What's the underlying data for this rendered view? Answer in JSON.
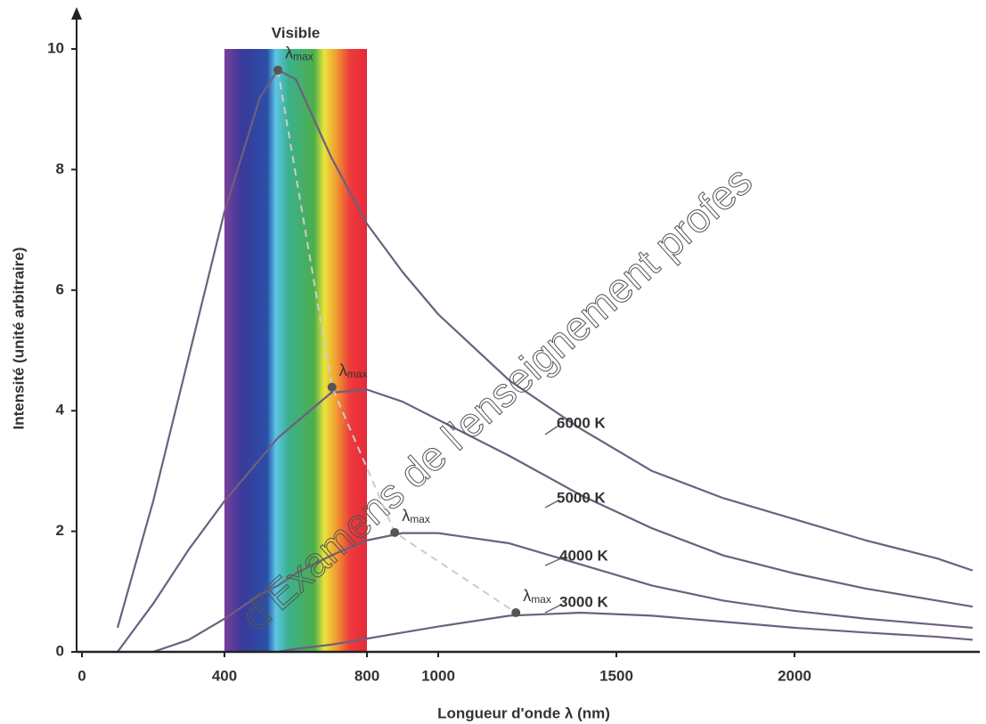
{
  "chart_data": {
    "type": "line",
    "x_label": "Longueur d'onde λ (nm)",
    "y_label": "Intensité (unité arbitraire)",
    "xlim": [
      0,
      2500
    ],
    "ylim": [
      0,
      10
    ],
    "xticks": [
      0,
      400,
      800,
      1000,
      1500,
      2000
    ],
    "yticks": [
      0,
      2,
      4,
      6,
      8,
      10
    ],
    "visible_band": {
      "label": "Visible",
      "range": [
        400,
        800
      ]
    },
    "peak_label": {
      "symbol": "λ",
      "subscript": "max"
    },
    "x": [
      100,
      200,
      300,
      400,
      500,
      550,
      600,
      700,
      800,
      900,
      1000,
      1200,
      1400,
      1600,
      1800,
      2000,
      2200,
      2400,
      2500
    ],
    "series": [
      {
        "name": "6000 K",
        "color": "#6e5f7e",
        "values": [
          0.4,
          2.5,
          4.9,
          7.3,
          9.2,
          9.65,
          9.5,
          8.2,
          7.1,
          6.3,
          5.6,
          4.5,
          3.7,
          3.0,
          2.55,
          2.2,
          1.85,
          1.55,
          1.35
        ]
      },
      {
        "name": "5000 K",
        "color": "#6e5f7e",
        "values": [
          0,
          0.8,
          1.7,
          2.5,
          3.2,
          3.55,
          3.8,
          4.3,
          4.35,
          4.15,
          3.85,
          3.25,
          2.6,
          2.05,
          1.6,
          1.3,
          1.05,
          0.85,
          0.75
        ]
      },
      {
        "name": "4000 K",
        "color": "#6e5f7e",
        "values": [
          null,
          0,
          0.2,
          0.55,
          0.95,
          1.1,
          1.3,
          1.6,
          1.85,
          1.97,
          1.97,
          1.8,
          1.45,
          1.1,
          0.85,
          0.68,
          0.55,
          0.45,
          0.4
        ]
      },
      {
        "name": "3000 K",
        "color": "#6e5f7e",
        "values": [
          null,
          null,
          null,
          null,
          null,
          0,
          0.05,
          0.12,
          0.22,
          0.32,
          0.42,
          0.6,
          0.65,
          0.6,
          0.5,
          0.4,
          0.32,
          0.25,
          0.2
        ]
      }
    ],
    "peaks": {
      "x": [
        550,
        702,
        878,
        1218
      ],
      "values": [
        9.65,
        4.39,
        1.98,
        0.65
      ],
      "color": "#555555"
    },
    "watermark": "d'Examens de l'enseignement profes"
  }
}
